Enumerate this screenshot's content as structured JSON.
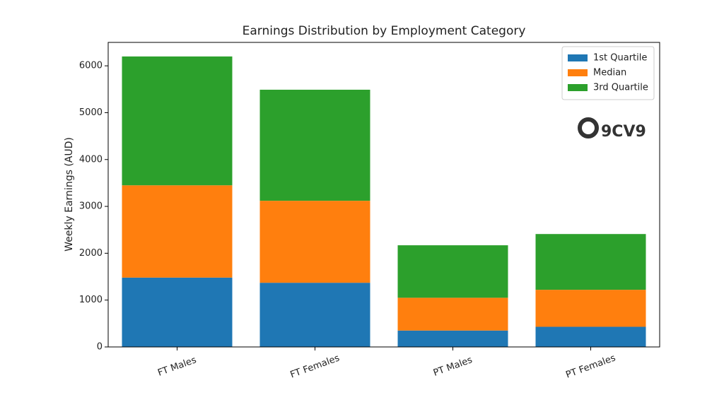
{
  "chart_data": {
    "type": "stacked_bar",
    "title": "Earnings Distribution by Employment Category",
    "y_label": "Weekly Earnings (AUD)",
    "categories": [
      "FT Males",
      "FT Females",
      "PT Males",
      "PT Females"
    ],
    "series": [
      {
        "name": "1st Quartile",
        "color": "#1f77b4",
        "values": [
          1480,
          1370,
          350,
          430
        ]
      },
      {
        "name": "Median",
        "color": "#ff7f0e",
        "values": [
          1970,
          1750,
          700,
          790
        ]
      },
      {
        "name": "3rd Quartile",
        "color": "#2ca02c",
        "values": [
          2750,
          2370,
          1120,
          1190
        ]
      }
    ],
    "ylim": [
      0,
      6500
    ],
    "yticks": [
      0,
      1000,
      2000,
      3000,
      4000,
      5000,
      6000
    ],
    "legend": "upper right",
    "watermark": "9CV9"
  }
}
